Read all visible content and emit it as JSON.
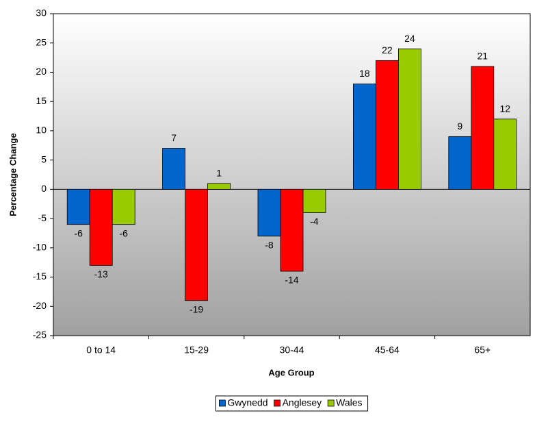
{
  "chart_data": {
    "type": "bar",
    "x_label": "Age Group",
    "y_label": "Percentage Change",
    "categories": [
      "0 to 14",
      "15-29",
      "30-44",
      "45-64",
      "65+"
    ],
    "series": [
      {
        "name": "Gwynedd",
        "color": "#0066cc",
        "values": [
          -6,
          7,
          -8,
          18,
          9
        ]
      },
      {
        "name": "Anglesey",
        "color": "#ff0000",
        "values": [
          -13,
          -19,
          -14,
          22,
          21
        ]
      },
      {
        "name": "Wales",
        "color": "#99cc00",
        "values": [
          -6,
          1,
          -4,
          24,
          12
        ]
      }
    ],
    "ylim": [
      -25,
      30
    ],
    "yticks": [
      -25,
      -20,
      -15,
      -10,
      -5,
      0,
      5,
      10,
      15,
      20,
      25,
      30
    ],
    "legend": "bottom"
  }
}
